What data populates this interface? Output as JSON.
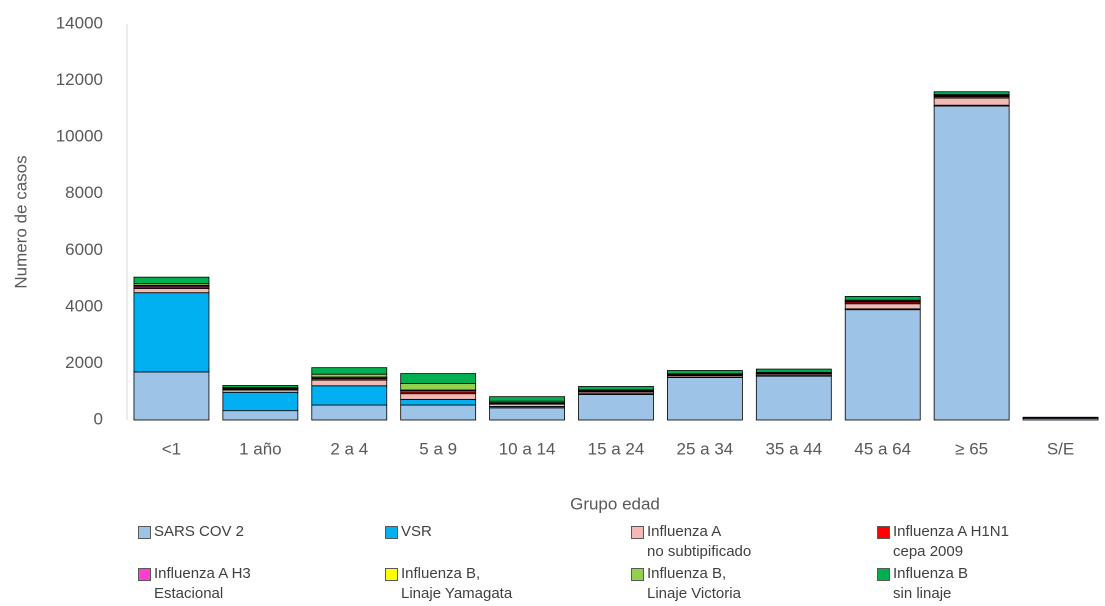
{
  "chart_data": {
    "type": "stacked_bar",
    "x_label": "Grupo edad",
    "y_label": "Numero de casos",
    "categories": [
      "<1",
      "1 año",
      "2 a 4",
      "5 a 9",
      "10 a 14",
      "15 a 24",
      "25 a 34",
      "35 a 44",
      "45 a 64",
      "≥ 65",
      "S/E"
    ],
    "series": [
      {
        "name": "SARS COV 2",
        "color": "#9dc3e6",
        "values": [
          1700,
          330,
          530,
          530,
          430,
          900,
          1500,
          1550,
          3900,
          11100,
          60
        ]
      },
      {
        "name": "VSR",
        "color": "#00b0f0",
        "values": [
          2800,
          650,
          680,
          200,
          50,
          30,
          20,
          20,
          30,
          30,
          5
        ]
      },
      {
        "name": "Influenza A\nno subtipificado",
        "color": "#f4b9b5",
        "values": [
          150,
          80,
          200,
          200,
          80,
          60,
          50,
          50,
          180,
          250,
          5
        ]
      },
      {
        "name": "Influenza A H1N1\ncepa 2009",
        "color": "#ff0000",
        "values": [
          60,
          30,
          60,
          60,
          30,
          25,
          25,
          25,
          60,
          60,
          3
        ]
      },
      {
        "name": "Influenza A H3\nEstacional",
        "color": "#ff3fd0",
        "values": [
          40,
          20,
          40,
          50,
          20,
          15,
          15,
          15,
          30,
          30,
          2
        ]
      },
      {
        "name": "Influenza B,\nLinaje Yamagata",
        "color": "#ffff00",
        "values": [
          10,
          5,
          10,
          20,
          5,
          5,
          5,
          5,
          5,
          5,
          1
        ]
      },
      {
        "name": "Influenza B,\nLinaje Victoria",
        "color": "#92d050",
        "values": [
          60,
          30,
          100,
          230,
          50,
          30,
          20,
          20,
          30,
          30,
          2
        ]
      },
      {
        "name": "Influenza B\nsin linaje",
        "color": "#00b050",
        "values": [
          230,
          75,
          230,
          350,
          160,
          120,
          115,
          115,
          135,
          100,
          20
        ]
      }
    ],
    "ylim": [
      0,
      14000
    ],
    "yticks": [
      0,
      2000,
      4000,
      6000,
      8000,
      10000,
      12000,
      14000
    ]
  }
}
